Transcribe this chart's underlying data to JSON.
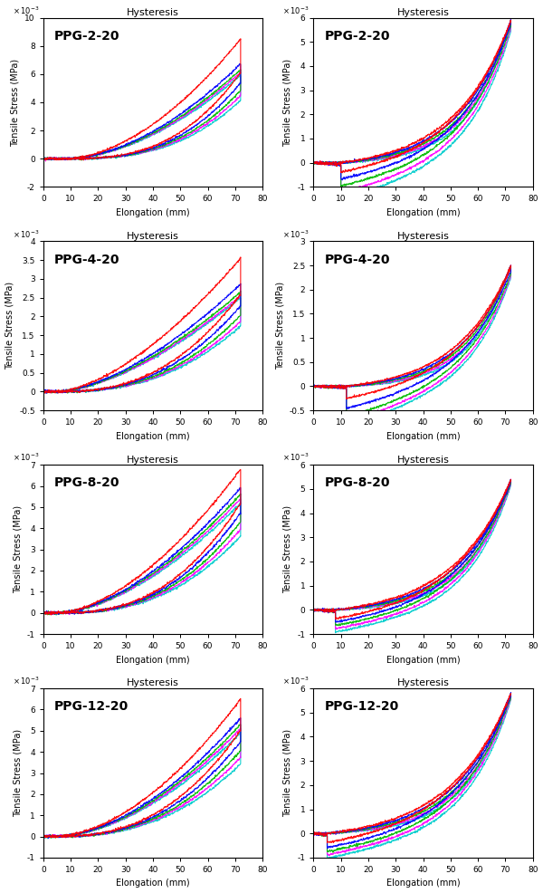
{
  "subplots": [
    {
      "label": "PPG-2-20",
      "col": 0,
      "ylim": [
        -0.002,
        0.01
      ],
      "yticks": [
        -2,
        0,
        2,
        4,
        6,
        8,
        10
      ],
      "peak": 0.0085,
      "ends": [
        0.0072,
        0.0066,
        0.0062,
        0.006,
        0.0058
      ],
      "slack": 8.0,
      "load_pow": 1.8,
      "ret_pow": 2.8
    },
    {
      "label": "PPG-2-20",
      "col": 1,
      "ylim": [
        -0.001,
        0.006
      ],
      "yticks": [
        -1,
        0,
        1,
        2,
        3,
        4,
        5,
        6
      ],
      "peak": 0.0059,
      "ends": [
        0.00585,
        0.00575,
        0.00565,
        0.00555,
        0.00545
      ],
      "slack": 10.0,
      "load_pow": 2.5,
      "ret_pow": 3.2
    },
    {
      "label": "PPG-4-20",
      "col": 0,
      "ylim": [
        -0.0005,
        0.004
      ],
      "yticks": [
        -0.5,
        0,
        0.5,
        1.0,
        1.5,
        2.0,
        2.5,
        3.0,
        3.5,
        4.0
      ],
      "peak": 0.00355,
      "ends": [
        0.00305,
        0.0028,
        0.0026,
        0.0025,
        0.00245
      ],
      "slack": 5.0,
      "load_pow": 1.6,
      "ret_pow": 2.5
    },
    {
      "label": "PPG-4-20",
      "col": 1,
      "ylim": [
        -0.0005,
        0.003
      ],
      "yticks": [
        -0.5,
        0,
        0.5,
        1.0,
        1.5,
        2.0,
        2.5,
        3.0
      ],
      "peak": 0.0025,
      "ends": [
        0.00245,
        0.00238,
        0.00232,
        0.00228,
        0.00225
      ],
      "slack": 12.0,
      "load_pow": 2.8,
      "ret_pow": 3.5
    },
    {
      "label": "PPG-8-20",
      "col": 0,
      "ylim": [
        -0.001,
        0.007
      ],
      "yticks": [
        -1,
        0,
        1,
        2,
        3,
        4,
        5,
        6,
        7
      ],
      "peak": 0.0068,
      "ends": [
        0.0061,
        0.0058,
        0.0055,
        0.0053,
        0.0051
      ],
      "slack": 5.0,
      "load_pow": 1.7,
      "ret_pow": 2.6
    },
    {
      "label": "PPG-8-20",
      "col": 1,
      "ylim": [
        -0.001,
        0.006
      ],
      "yticks": [
        -1,
        0,
        1,
        2,
        3,
        4,
        5,
        6
      ],
      "peak": 0.0054,
      "ends": [
        0.00535,
        0.0053,
        0.00525,
        0.0052,
        0.00515
      ],
      "slack": 8.0,
      "load_pow": 2.4,
      "ret_pow": 3.0
    },
    {
      "label": "PPG-12-20",
      "col": 0,
      "ylim": [
        -0.001,
        0.007
      ],
      "yticks": [
        -1,
        0,
        1,
        2,
        3,
        4,
        5,
        6,
        7
      ],
      "peak": 0.0065,
      "ends": [
        0.0059,
        0.0055,
        0.0052,
        0.005,
        0.0048
      ],
      "slack": 4.0,
      "load_pow": 1.8,
      "ret_pow": 2.5
    },
    {
      "label": "PPG-12-20",
      "col": 1,
      "ylim": [
        -0.001,
        0.006
      ],
      "yticks": [
        -1,
        0,
        1,
        2,
        3,
        4,
        5,
        6
      ],
      "peak": 0.0058,
      "ends": [
        0.00575,
        0.00568,
        0.00562,
        0.00557,
        0.00552
      ],
      "slack": 5.0,
      "load_pow": 2.3,
      "ret_pow": 2.9
    }
  ],
  "colors": [
    "#FF0000",
    "#0000FF",
    "#00BB00",
    "#FF00FF",
    "#00CCCC"
  ],
  "xlim": [
    0,
    80
  ],
  "xticks": [
    0,
    10,
    20,
    30,
    40,
    50,
    60,
    70,
    80
  ],
  "xlabel": "Elongation (mm)",
  "ylabel": "Tensile Stress (MPa)",
  "subplot_title": "Hysteresis",
  "max_elong": 72.0,
  "n_cycles": 5
}
